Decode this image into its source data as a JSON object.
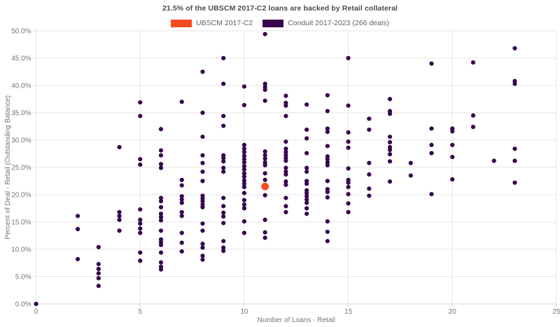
{
  "title": "21.5% of the UBSCM 2017-C2 loans are backed by Retail collateral",
  "colors": {
    "background": "#ffffff",
    "title_text": "#4a4a4a",
    "axis_text": "#757575",
    "legend_text": "#616161",
    "gridline": "#e6e6e6",
    "axis_line": "#d6d6d6",
    "highlight": "#f84b22",
    "conduit": "#36074e"
  },
  "chart_data": {
    "type": "scatter",
    "title": "21.5% of the UBSCM 2017-C2 loans are backed by Retail collateral",
    "xlabel": "Number of Loans - Retail",
    "ylabel": "Percent of Deal - Retail (Outstanding Balance)",
    "xlim": [
      0,
      25
    ],
    "ylim": [
      0,
      50
    ],
    "x_ticks": [
      0,
      5,
      10,
      15,
      20,
      25
    ],
    "y_ticks": [
      0,
      5,
      10,
      15,
      20,
      25,
      30,
      35,
      40,
      45,
      50
    ],
    "y_tick_suffix": "%",
    "grid": true,
    "legend_position": "top-center",
    "series": [
      {
        "name": "UBSCM 2017-C2",
        "color": "#f84b22",
        "marker_radius": 5.4,
        "points": [
          [
            11,
            21.5
          ]
        ]
      },
      {
        "name": "Conduit 2017-2023 (266 deals)",
        "color": "#36074e",
        "marker_radius": 3.1,
        "points": [
          [
            0,
            0.0
          ],
          [
            2,
            16.1
          ],
          [
            2,
            13.7
          ],
          [
            2,
            8.2
          ],
          [
            3,
            10.4
          ],
          [
            3,
            7.3
          ],
          [
            3,
            6.4
          ],
          [
            3,
            5.6
          ],
          [
            3,
            4.7
          ],
          [
            3,
            3.3
          ],
          [
            4,
            28.7
          ],
          [
            4,
            16.8
          ],
          [
            4,
            16.1
          ],
          [
            4,
            15.4
          ],
          [
            4,
            13.4
          ],
          [
            5,
            36.9
          ],
          [
            5,
            34.4
          ],
          [
            5,
            26.5
          ],
          [
            5,
            25.5
          ],
          [
            5,
            17.3
          ],
          [
            5,
            15.4
          ],
          [
            5,
            14.7
          ],
          [
            5,
            13.8
          ],
          [
            5,
            13.0
          ],
          [
            5,
            9.4
          ],
          [
            5,
            7.9
          ],
          [
            6,
            32.0
          ],
          [
            6,
            28.1
          ],
          [
            6,
            27.2
          ],
          [
            6,
            25.6
          ],
          [
            6,
            24.9
          ],
          [
            6,
            19.4
          ],
          [
            6,
            18.8
          ],
          [
            6,
            17.7
          ],
          [
            6,
            16.5
          ],
          [
            6,
            15.9
          ],
          [
            6,
            15.3
          ],
          [
            6,
            13.4
          ],
          [
            6,
            11.8
          ],
          [
            6,
            11.3
          ],
          [
            6,
            10.8
          ],
          [
            6,
            9.4
          ],
          [
            6,
            7.6
          ],
          [
            6,
            6.8
          ],
          [
            6,
            6.3
          ],
          [
            7,
            37.0
          ],
          [
            7,
            22.7
          ],
          [
            7,
            21.7
          ],
          [
            7,
            19.7
          ],
          [
            7,
            19.1
          ],
          [
            7,
            18.5
          ],
          [
            7,
            16.8
          ],
          [
            7,
            16.1
          ],
          [
            7,
            13.0
          ],
          [
            7,
            11.2
          ],
          [
            7,
            9.6
          ],
          [
            8,
            42.5
          ],
          [
            8,
            35.0
          ],
          [
            8,
            30.6
          ],
          [
            8,
            27.2
          ],
          [
            8,
            25.8
          ],
          [
            8,
            24.2
          ],
          [
            8,
            22.5
          ],
          [
            8,
            19.8
          ],
          [
            8,
            19.3
          ],
          [
            8,
            18.8
          ],
          [
            8,
            18.2
          ],
          [
            8,
            17.7
          ],
          [
            8,
            14.7
          ],
          [
            8,
            13.4
          ],
          [
            8,
            11.0
          ],
          [
            8,
            10.3
          ],
          [
            8,
            8.8
          ],
          [
            8,
            8.1
          ],
          [
            9,
            45.0
          ],
          [
            9,
            40.3
          ],
          [
            9,
            34.4
          ],
          [
            9,
            32.6
          ],
          [
            9,
            27.2
          ],
          [
            9,
            26.7
          ],
          [
            9,
            26.1
          ],
          [
            9,
            24.9
          ],
          [
            9,
            24.2
          ],
          [
            9,
            19.4
          ],
          [
            9,
            17.9
          ],
          [
            9,
            16.7
          ],
          [
            9,
            16.0
          ],
          [
            9,
            14.8
          ],
          [
            9,
            11.5
          ],
          [
            9,
            10.3
          ],
          [
            9,
            9.7
          ],
          [
            10,
            39.8
          ],
          [
            10,
            36.4
          ],
          [
            10,
            29.1
          ],
          [
            10,
            28.4
          ],
          [
            10,
            27.8
          ],
          [
            10,
            27.1
          ],
          [
            10,
            26.5
          ],
          [
            10,
            25.9
          ],
          [
            10,
            25.2
          ],
          [
            10,
            24.6
          ],
          [
            10,
            23.9
          ],
          [
            10,
            23.3
          ],
          [
            10,
            22.6
          ],
          [
            10,
            22.0
          ],
          [
            10,
            21.4
          ],
          [
            10,
            20.3
          ],
          [
            10,
            19.0
          ],
          [
            10,
            18.2
          ],
          [
            10,
            17.5
          ],
          [
            10,
            15.1
          ],
          [
            10,
            13.0
          ],
          [
            11,
            49.4
          ],
          [
            11,
            40.3
          ],
          [
            11,
            39.7
          ],
          [
            11,
            39.2
          ],
          [
            11,
            37.2
          ],
          [
            11,
            27.9
          ],
          [
            11,
            27.2
          ],
          [
            11,
            26.6
          ],
          [
            11,
            25.9
          ],
          [
            11,
            25.4
          ],
          [
            11,
            23.9
          ],
          [
            11,
            22.7
          ],
          [
            11,
            19.9
          ],
          [
            11,
            15.4
          ],
          [
            11,
            13.1
          ],
          [
            11,
            12.1
          ],
          [
            12,
            38.1
          ],
          [
            12,
            36.8
          ],
          [
            12,
            36.3
          ],
          [
            12,
            34.4
          ],
          [
            12,
            29.7
          ],
          [
            12,
            28.4
          ],
          [
            12,
            27.8
          ],
          [
            12,
            27.2
          ],
          [
            12,
            26.7
          ],
          [
            12,
            26.2
          ],
          [
            12,
            24.9
          ],
          [
            12,
            24.2
          ],
          [
            12,
            23.7
          ],
          [
            12,
            22.4
          ],
          [
            12,
            21.8
          ],
          [
            12,
            19.4
          ],
          [
            12,
            17.9
          ],
          [
            12,
            16.8
          ],
          [
            13,
            36.5
          ],
          [
            13,
            31.9
          ],
          [
            13,
            30.3
          ],
          [
            13,
            27.6
          ],
          [
            13,
            24.9
          ],
          [
            13,
            24.2
          ],
          [
            13,
            22.5
          ],
          [
            13,
            22.0
          ],
          [
            13,
            20.8
          ],
          [
            13,
            20.3
          ],
          [
            13,
            19.7
          ],
          [
            13,
            19.1
          ],
          [
            13,
            18.5
          ],
          [
            13,
            17.5
          ],
          [
            13,
            16.5
          ],
          [
            14,
            38.2
          ],
          [
            14,
            35.3
          ],
          [
            14,
            32.1
          ],
          [
            14,
            31.5
          ],
          [
            14,
            28.9
          ],
          [
            14,
            27.0
          ],
          [
            14,
            26.5
          ],
          [
            14,
            25.9
          ],
          [
            14,
            25.4
          ],
          [
            14,
            22.5
          ],
          [
            14,
            21.0
          ],
          [
            14,
            20.5
          ],
          [
            14,
            19.5
          ],
          [
            14,
            15.1
          ],
          [
            14,
            13.2
          ],
          [
            14,
            11.5
          ],
          [
            15,
            45.0
          ],
          [
            15,
            36.3
          ],
          [
            15,
            31.4
          ],
          [
            15,
            29.7
          ],
          [
            15,
            28.6
          ],
          [
            15,
            24.8
          ],
          [
            15,
            22.7
          ],
          [
            15,
            22.2
          ],
          [
            15,
            21.4
          ],
          [
            15,
            20.1
          ],
          [
            15,
            18.4
          ],
          [
            15,
            16.8
          ],
          [
            16,
            33.9
          ],
          [
            16,
            31.9
          ],
          [
            16,
            25.8
          ],
          [
            16,
            23.7
          ],
          [
            16,
            21.1
          ],
          [
            16,
            19.8
          ],
          [
            17,
            37.5
          ],
          [
            17,
            35.3
          ],
          [
            17,
            34.8
          ],
          [
            17,
            30.6
          ],
          [
            17,
            29.6
          ],
          [
            17,
            28.7
          ],
          [
            17,
            28.2
          ],
          [
            17,
            27.4
          ],
          [
            17,
            26.1
          ],
          [
            17,
            22.4
          ],
          [
            18,
            25.8
          ],
          [
            18,
            23.5
          ],
          [
            19,
            44.0
          ],
          [
            19,
            32.1
          ],
          [
            19,
            29.1
          ],
          [
            19,
            27.6
          ],
          [
            19,
            20.1
          ],
          [
            20,
            32.1
          ],
          [
            20,
            31.6
          ],
          [
            20,
            29.1
          ],
          [
            20,
            26.9
          ],
          [
            20,
            22.8
          ],
          [
            21,
            44.2
          ],
          [
            21,
            34.5
          ],
          [
            21,
            32.4
          ],
          [
            22,
            26.2
          ],
          [
            23,
            46.8
          ],
          [
            23,
            40.8
          ],
          [
            23,
            40.3
          ],
          [
            23,
            28.4
          ],
          [
            23,
            26.2
          ],
          [
            23,
            22.2
          ]
        ]
      }
    ]
  }
}
